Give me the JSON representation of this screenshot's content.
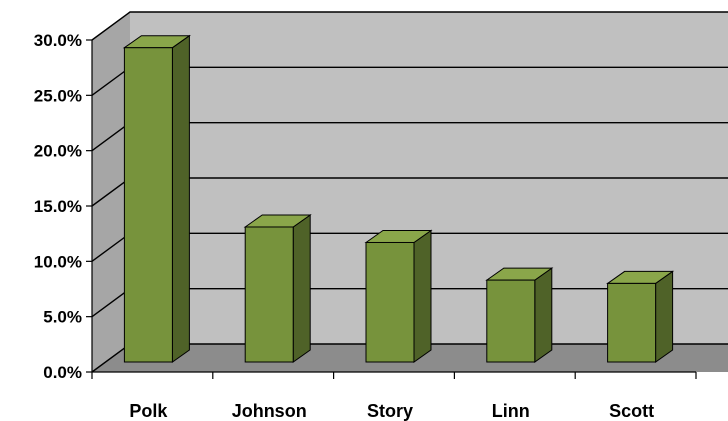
{
  "chart_data": {
    "type": "bar",
    "categories": [
      "Polk",
      "Johnson",
      "Story",
      "Linn",
      "Scott"
    ],
    "values": [
      28.4,
      12.2,
      10.8,
      7.4,
      7.1
    ],
    "ylim": [
      0,
      30
    ],
    "y_ticks": [
      "0.0%",
      "5.0%",
      "10.0%",
      "15.0%",
      "20.0%",
      "25.0%",
      "30.0%"
    ],
    "grid": true,
    "three_d": true,
    "colors": {
      "bar_front": "#77933c",
      "bar_side": "#4f6228",
      "bar_top": "#8aa64a",
      "wall": "#c0c0c0",
      "floor": "#8c8c8c",
      "gridline": "#000000"
    }
  }
}
